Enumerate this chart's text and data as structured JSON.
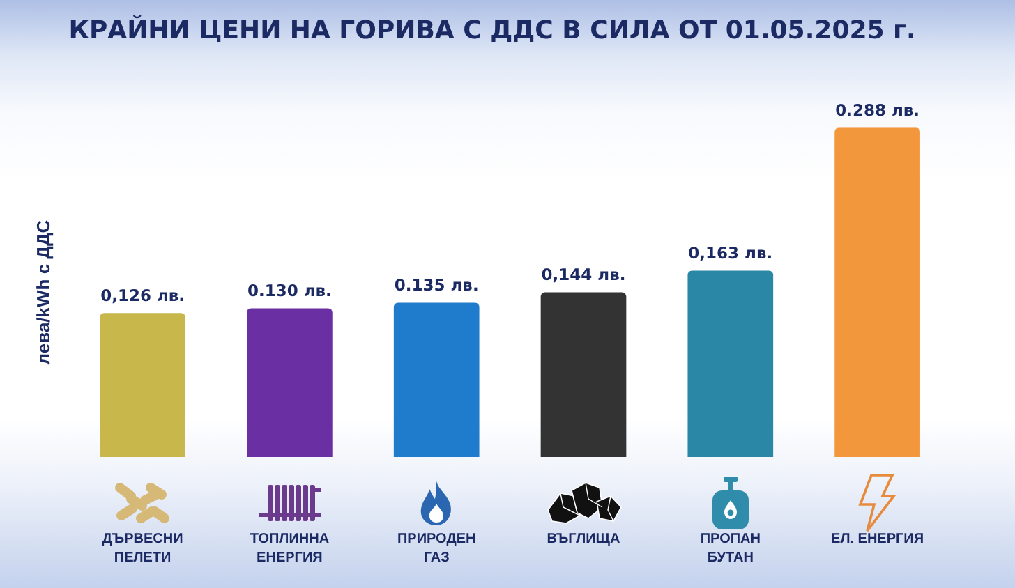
{
  "chart_data": {
    "type": "bar",
    "title": "КРАЙНИ ЦЕНИ НА ГОРИВА С ДДС В СИЛА ОТ 01.05.2025 г.",
    "ylabel": "лева/kWh с ДДС",
    "categories": [
      "ДЪРВЕСНИ ПЕЛЕТИ",
      "ТОПЛИННА ЕНЕРГИЯ",
      "ПРИРОДЕН ГАЗ",
      "ВЪГЛИЩА",
      "ПРОПАН БУТАН",
      "ЕЛ. ЕНЕРГИЯ"
    ],
    "values": [
      0.126,
      0.13,
      0.135,
      0.144,
      0.163,
      0.288
    ],
    "value_labels": [
      "0,126 лв.",
      "0.130 лв.",
      "0.135 лв.",
      "0,144 лв.",
      "0,163 лв.",
      "0.288 лв."
    ],
    "colors": [
      "#c8b84c",
      "#6a2fa2",
      "#1f7bcc",
      "#333333",
      "#2a88a6",
      "#f3973c"
    ],
    "tick_labels": "x",
    "grid": false,
    "legend": false
  }
}
